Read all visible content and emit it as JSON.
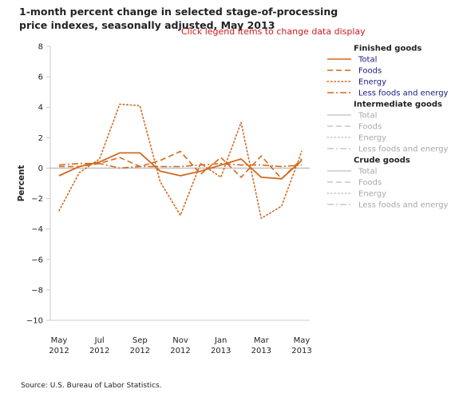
{
  "header": {
    "title": "1-month percent change in selected stage-of-processing price indexes, seasonally adjusted, May 2013",
    "instruction": "Click legend items to change data display",
    "source": "Source: U.S. Bureau of Labor Statistics."
  },
  "colors": {
    "active": "#d2691e",
    "active_label": "#1a1a80",
    "inactive": "#c8c8c8",
    "inactive_label": "#a8a8a8",
    "axis": "#cccccc",
    "zero_line": "#c0c0c0"
  },
  "chart_data": {
    "type": "line",
    "title": "1-month percent change in selected stage-of-processing price indexes, seasonally adjusted, May 2013",
    "ylabel": "Percent",
    "xlabel": "",
    "ylim": [
      -10,
      8
    ],
    "yticks": [
      8,
      6,
      4,
      2,
      0,
      -2,
      -4,
      -6,
      -8,
      -10
    ],
    "grid": false,
    "legend_position": "right",
    "categories": [
      "May 2012",
      "Jun 2012",
      "Jul 2012",
      "Aug 2012",
      "Sep 2012",
      "Oct 2012",
      "Nov 2012",
      "Dec 2012",
      "Jan 2013",
      "Feb 2013",
      "Mar 2013",
      "Apr 2013",
      "May 2013"
    ],
    "tick_labels": [
      {
        "index": 0,
        "line1": "May",
        "line2": "2012"
      },
      {
        "index": 2,
        "line1": "Jul",
        "line2": "2012"
      },
      {
        "index": 4,
        "line1": "Sep",
        "line2": "2012"
      },
      {
        "index": 6,
        "line1": "Nov",
        "line2": "2012"
      },
      {
        "index": 8,
        "line1": "Jan",
        "line2": "2013"
      },
      {
        "index": 10,
        "line1": "Mar",
        "line2": "2013"
      },
      {
        "index": 12,
        "line1": "May",
        "line2": "2013"
      }
    ],
    "legend_groups": [
      {
        "label": "Finished goods",
        "active": true,
        "series": [
          {
            "name": "Total",
            "dash": "solid",
            "values": [
              -0.5,
              0.1,
              0.4,
              1.0,
              1.0,
              -0.2,
              -0.5,
              -0.2,
              0.2,
              0.6,
              -0.6,
              -0.7,
              0.5
            ]
          },
          {
            "name": "Foods",
            "dash": "dash",
            "values": [
              0.1,
              0.1,
              0.3,
              0.7,
              0.1,
              0.5,
              1.1,
              -0.4,
              0.7,
              -0.6,
              0.8,
              -0.7,
              0.6
            ]
          },
          {
            "name": "Energy",
            "dash": "dot",
            "values": [
              -2.8,
              -0.3,
              0.6,
              4.2,
              4.1,
              -0.9,
              -3.1,
              0.3,
              -0.6,
              3.0,
              -3.3,
              -2.5,
              1.1
            ]
          },
          {
            "name": "Less foods and energy",
            "dash": "dashdot",
            "values": [
              0.2,
              0.3,
              0.3,
              0.0,
              0.1,
              0.1,
              0.1,
              0.2,
              0.3,
              0.2,
              0.2,
              0.1,
              0.2
            ]
          }
        ]
      },
      {
        "label": "Intermediate goods",
        "active": false,
        "series": [
          {
            "name": "Total",
            "dash": "solid"
          },
          {
            "name": "Foods",
            "dash": "dash"
          },
          {
            "name": "Energy",
            "dash": "dot"
          },
          {
            "name": "Less foods and energy",
            "dash": "dashdot"
          }
        ]
      },
      {
        "label": "Crude goods",
        "active": false,
        "series": [
          {
            "name": "Total",
            "dash": "solid"
          },
          {
            "name": "Foods",
            "dash": "dash"
          },
          {
            "name": "Energy",
            "dash": "dot"
          },
          {
            "name": "Less foods and energy",
            "dash": "dashdot"
          }
        ]
      }
    ]
  }
}
